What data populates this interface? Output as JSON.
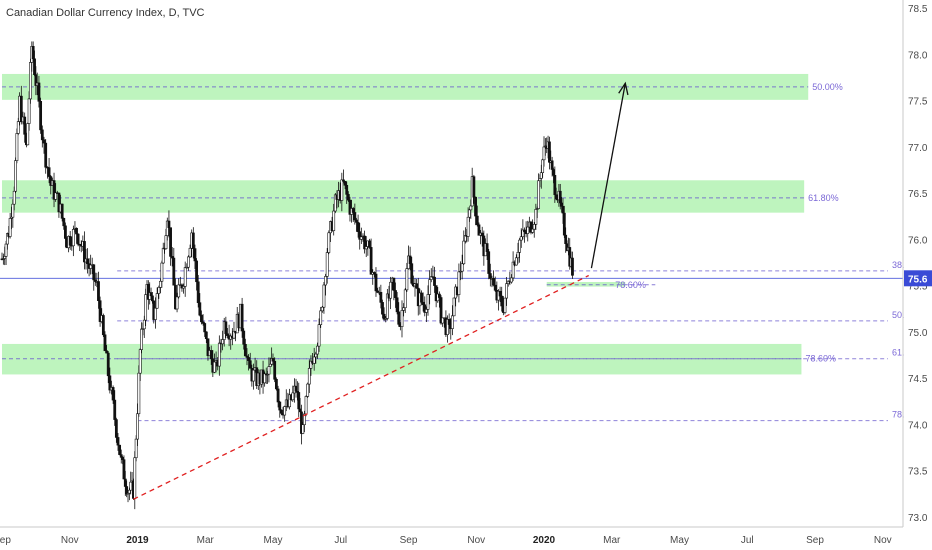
{
  "chart_data": {
    "type": "candlestick",
    "title": "Canadian Dollar Currency Index, D, TVC",
    "y_range": [
      72.9,
      78.6
    ],
    "y_ticks": [
      "78.5",
      "78.0",
      "77.5",
      "77.0",
      "76.5",
      "76.0",
      "75.5",
      "75.0",
      "74.5",
      "74.0",
      "73.5",
      "73.0"
    ],
    "x_ticks": [
      "Sep",
      "Nov",
      "2019",
      "Mar",
      "May",
      "Jul",
      "Sep",
      "Nov",
      "2020",
      "Mar",
      "May",
      "Jul",
      "Sep",
      "Nov"
    ],
    "bold_x_ticks": [
      "2019",
      "2020"
    ],
    "x_tick_fracs": [
      0.0,
      0.5,
      1.0,
      1.5,
      2.0,
      2.5,
      3.0,
      3.5,
      4.0,
      4.5,
      5.0,
      5.5,
      6.0,
      6.5
    ],
    "last_price": "75.6",
    "last_price_value": 75.59,
    "zones": [
      {
        "y_top": 77.8,
        "y_bottom": 77.52,
        "x_start": 0.0,
        "x_end": 5.95,
        "label": "50.00%",
        "line": 77.66
      },
      {
        "y_top": 76.65,
        "y_bottom": 76.3,
        "x_start": 0.0,
        "x_end": 5.92,
        "label": "61.80%",
        "line": 76.46
      },
      {
        "y_top": 74.88,
        "y_bottom": 74.55,
        "x_start": 0.0,
        "x_end": 5.9,
        "label": "78.60%",
        "line": 74.72
      },
      {
        "y_top": 75.55,
        "y_bottom": 75.5,
        "x_start": 4.02,
        "x_end": 4.6,
        "label": "78.60%",
        "line": 75.52
      }
    ],
    "fib_levels": [
      {
        "value": 75.67,
        "x_start": 0.85,
        "label": "38."
      },
      {
        "value": 75.13,
        "x_start": 0.85,
        "label": "50."
      },
      {
        "value": 74.72,
        "x_start": 0.85,
        "label": "61."
      },
      {
        "value": 74.05,
        "x_start": 1.0,
        "label": "78."
      }
    ],
    "candles": [
      [
        0.0,
        75.8
      ],
      [
        0.05,
        76.1
      ],
      [
        0.09,
        76.6
      ],
      [
        0.13,
        77.5
      ],
      [
        0.18,
        77.0
      ],
      [
        0.22,
        78.1
      ],
      [
        0.26,
        77.6
      ],
      [
        0.31,
        77.0
      ],
      [
        0.36,
        76.6
      ],
      [
        0.42,
        76.4
      ],
      [
        0.48,
        76.0
      ],
      [
        0.55,
        76.1
      ],
      [
        0.62,
        75.8
      ],
      [
        0.7,
        75.5
      ],
      [
        0.76,
        74.8
      ],
      [
        0.82,
        74.2
      ],
      [
        0.88,
        73.6
      ],
      [
        0.93,
        73.3
      ],
      [
        0.97,
        73.3
      ],
      [
        1.02,
        74.8
      ],
      [
        1.07,
        75.5
      ],
      [
        1.12,
        75.2
      ],
      [
        1.17,
        75.6
      ],
      [
        1.22,
        76.3
      ],
      [
        1.28,
        75.3
      ],
      [
        1.34,
        75.6
      ],
      [
        1.4,
        76.1
      ],
      [
        1.46,
        75.2
      ],
      [
        1.52,
        74.8
      ],
      [
        1.58,
        74.6
      ],
      [
        1.64,
        75.1
      ],
      [
        1.7,
        75.0
      ],
      [
        1.76,
        75.2
      ],
      [
        1.82,
        74.6
      ],
      [
        1.88,
        74.5
      ],
      [
        1.95,
        74.5
      ],
      [
        2.0,
        74.7
      ],
      [
        2.05,
        74.2
      ],
      [
        2.11,
        74.2
      ],
      [
        2.17,
        74.4
      ],
      [
        2.22,
        73.9
      ],
      [
        2.28,
        74.7
      ],
      [
        2.34,
        75.0
      ],
      [
        2.4,
        75.9
      ],
      [
        2.46,
        76.4
      ],
      [
        2.52,
        76.6
      ],
      [
        2.58,
        76.3
      ],
      [
        2.64,
        76.1
      ],
      [
        2.7,
        75.9
      ],
      [
        2.76,
        75.5
      ],
      [
        2.82,
        75.2
      ],
      [
        2.88,
        75.5
      ],
      [
        2.94,
        75.1
      ],
      [
        3.0,
        75.8
      ],
      [
        3.06,
        75.4
      ],
      [
        3.12,
        75.3
      ],
      [
        3.18,
        75.6
      ],
      [
        3.24,
        75.2
      ],
      [
        3.3,
        75.0
      ],
      [
        3.36,
        75.5
      ],
      [
        3.42,
        76.0
      ],
      [
        3.47,
        76.6
      ],
      [
        3.52,
        76.1
      ],
      [
        3.58,
        75.8
      ],
      [
        3.64,
        75.4
      ],
      [
        3.7,
        75.3
      ],
      [
        3.76,
        75.7
      ],
      [
        3.82,
        76.0
      ],
      [
        3.88,
        76.1
      ],
      [
        3.94,
        76.3
      ],
      [
        3.98,
        76.8
      ],
      [
        4.02,
        77.1
      ],
      [
        4.06,
        76.7
      ],
      [
        4.1,
        76.5
      ],
      [
        4.14,
        76.2
      ],
      [
        4.18,
        75.9
      ],
      [
        4.22,
        75.6
      ]
    ],
    "trendline": {
      "x1": 0.97,
      "y1": 73.2,
      "x2": 4.33,
      "y2": 75.62
    },
    "arrow": {
      "x1": 4.35,
      "y1": 75.7,
      "x2": 4.6,
      "y2": 77.7
    },
    "markers": [
      {
        "x": 4.7,
        "value": 75.52
      }
    ]
  }
}
